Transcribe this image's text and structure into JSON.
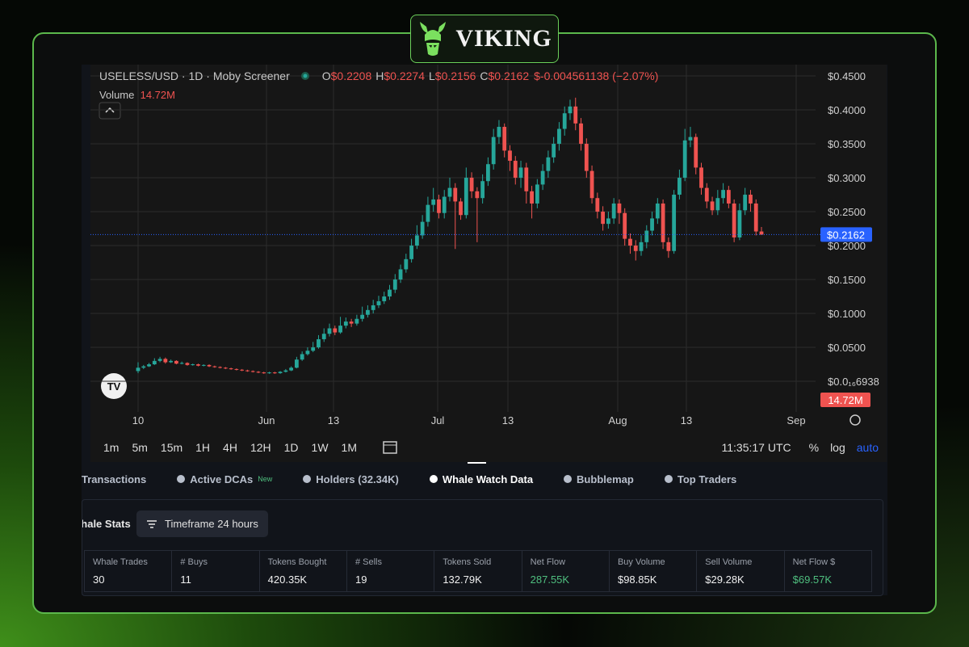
{
  "brand": "VIKING",
  "chart_data": {
    "type": "candlestick",
    "title": "USELESS/USD · 1D · Moby Screener",
    "ohlc_letters": [
      "O",
      "H",
      "L",
      "C"
    ],
    "ohlc_values": [
      "$0.2208",
      "$0.2274",
      "$0.2156",
      "$0.2162"
    ],
    "change": "$-0.004561138 (−2.07%)",
    "volume_label": "Volume",
    "volume": "14.72M",
    "up_color": "#26a69a",
    "down_color": "#ef5350",
    "ylim": [
      -0.0452,
      0.4667
    ],
    "yticks": [
      {
        "value": 0.45,
        "label": "$0.4500"
      },
      {
        "value": 0.4,
        "label": "$0.4000"
      },
      {
        "value": 0.35,
        "label": "$0.3500"
      },
      {
        "value": 0.3,
        "label": "$0.3000"
      },
      {
        "value": 0.25,
        "label": "$0.2500"
      },
      {
        "value": 0.2,
        "label": "$0.2000"
      },
      {
        "value": 0.15,
        "label": "$0.1500"
      },
      {
        "value": 0.1,
        "label": "$0.1000"
      },
      {
        "value": 0.05,
        "label": "$0.0500"
      },
      {
        "value": 6.938e-18,
        "label": "$0.0₁₆6938"
      }
    ],
    "last_price": {
      "value": 0.2162,
      "label": "$0.2162"
    },
    "xtick_labels": [
      "10",
      "Jun",
      "13",
      "Jul",
      "13",
      "Aug",
      "13",
      "Sep"
    ],
    "candles": [
      [
        0.015,
        0.028,
        0.012,
        0.02
      ],
      [
        0.02,
        0.024,
        0.018,
        0.022
      ],
      [
        0.022,
        0.027,
        0.021,
        0.025
      ],
      [
        0.025,
        0.034,
        0.024,
        0.03
      ],
      [
        0.03,
        0.036,
        0.028,
        0.033
      ],
      [
        0.033,
        0.035,
        0.026,
        0.028
      ],
      [
        0.028,
        0.032,
        0.027,
        0.03
      ],
      [
        0.03,
        0.031,
        0.025,
        0.026
      ],
      [
        0.026,
        0.029,
        0.025,
        0.027
      ],
      [
        0.027,
        0.028,
        0.023,
        0.024
      ],
      [
        0.024,
        0.026,
        0.023,
        0.025
      ],
      [
        0.025,
        0.026,
        0.022,
        0.023
      ],
      [
        0.023,
        0.025,
        0.022,
        0.024
      ],
      [
        0.024,
        0.025,
        0.021,
        0.022
      ],
      [
        0.022,
        0.023,
        0.02,
        0.021
      ],
      [
        0.021,
        0.022,
        0.019,
        0.02
      ],
      [
        0.02,
        0.021,
        0.018,
        0.019
      ],
      [
        0.019,
        0.02,
        0.017,
        0.018
      ],
      [
        0.018,
        0.019,
        0.016,
        0.017
      ],
      [
        0.017,
        0.018,
        0.015,
        0.016
      ],
      [
        0.016,
        0.017,
        0.014,
        0.015
      ],
      [
        0.015,
        0.016,
        0.013,
        0.014
      ],
      [
        0.014,
        0.015,
        0.012,
        0.013
      ],
      [
        0.013,
        0.014,
        0.011,
        0.012
      ],
      [
        0.012,
        0.014,
        0.011,
        0.013
      ],
      [
        0.013,
        0.014,
        0.011,
        0.012
      ],
      [
        0.012,
        0.015,
        0.011,
        0.014
      ],
      [
        0.014,
        0.018,
        0.013,
        0.016
      ],
      [
        0.016,
        0.022,
        0.015,
        0.02
      ],
      [
        0.02,
        0.036,
        0.019,
        0.032
      ],
      [
        0.032,
        0.044,
        0.03,
        0.04
      ],
      [
        0.04,
        0.05,
        0.038,
        0.045
      ],
      [
        0.045,
        0.058,
        0.043,
        0.05
      ],
      [
        0.05,
        0.068,
        0.048,
        0.062
      ],
      [
        0.062,
        0.078,
        0.058,
        0.07
      ],
      [
        0.07,
        0.085,
        0.066,
        0.078
      ],
      [
        0.078,
        0.082,
        0.068,
        0.072
      ],
      [
        0.072,
        0.095,
        0.07,
        0.082
      ],
      [
        0.082,
        0.094,
        0.078,
        0.088
      ],
      [
        0.088,
        0.092,
        0.08,
        0.085
      ],
      [
        0.085,
        0.098,
        0.082,
        0.092
      ],
      [
        0.092,
        0.11,
        0.088,
        0.098
      ],
      [
        0.098,
        0.112,
        0.094,
        0.105
      ],
      [
        0.105,
        0.12,
        0.1,
        0.112
      ],
      [
        0.112,
        0.126,
        0.108,
        0.118
      ],
      [
        0.118,
        0.132,
        0.114,
        0.125
      ],
      [
        0.125,
        0.142,
        0.12,
        0.135
      ],
      [
        0.135,
        0.158,
        0.13,
        0.15
      ],
      [
        0.15,
        0.172,
        0.145,
        0.165
      ],
      [
        0.165,
        0.188,
        0.16,
        0.18
      ],
      [
        0.18,
        0.21,
        0.175,
        0.2
      ],
      [
        0.2,
        0.23,
        0.195,
        0.215
      ],
      [
        0.215,
        0.245,
        0.21,
        0.235
      ],
      [
        0.235,
        0.272,
        0.228,
        0.26
      ],
      [
        0.26,
        0.285,
        0.25,
        0.268
      ],
      [
        0.268,
        0.275,
        0.24,
        0.248
      ],
      [
        0.248,
        0.282,
        0.24,
        0.272
      ],
      [
        0.272,
        0.3,
        0.265,
        0.285
      ],
      [
        0.285,
        0.292,
        0.195,
        0.265
      ],
      [
        0.265,
        0.27,
        0.238,
        0.245
      ],
      [
        0.245,
        0.315,
        0.24,
        0.3
      ],
      [
        0.3,
        0.308,
        0.27,
        0.28
      ],
      [
        0.28,
        0.286,
        0.205,
        0.27
      ],
      [
        0.27,
        0.305,
        0.262,
        0.295
      ],
      [
        0.295,
        0.33,
        0.288,
        0.32
      ],
      [
        0.32,
        0.372,
        0.312,
        0.36
      ],
      [
        0.36,
        0.385,
        0.35,
        0.375
      ],
      [
        0.375,
        0.38,
        0.33,
        0.34
      ],
      [
        0.34,
        0.348,
        0.31,
        0.325
      ],
      [
        0.325,
        0.332,
        0.29,
        0.3
      ],
      [
        0.3,
        0.325,
        0.285,
        0.315
      ],
      [
        0.315,
        0.322,
        0.262,
        0.28
      ],
      [
        0.28,
        0.288,
        0.24,
        0.262
      ],
      [
        0.262,
        0.298,
        0.255,
        0.29
      ],
      [
        0.29,
        0.32,
        0.282,
        0.31
      ],
      [
        0.31,
        0.34,
        0.3,
        0.33
      ],
      [
        0.33,
        0.36,
        0.322,
        0.35
      ],
      [
        0.35,
        0.382,
        0.34,
        0.372
      ],
      [
        0.372,
        0.405,
        0.362,
        0.395
      ],
      [
        0.395,
        0.415,
        0.385,
        0.405
      ],
      [
        0.405,
        0.418,
        0.37,
        0.38
      ],
      [
        0.38,
        0.388,
        0.34,
        0.35
      ],
      [
        0.35,
        0.358,
        0.3,
        0.31
      ],
      [
        0.31,
        0.318,
        0.262,
        0.27
      ],
      [
        0.27,
        0.278,
        0.24,
        0.25
      ],
      [
        0.25,
        0.258,
        0.222,
        0.232
      ],
      [
        0.232,
        0.25,
        0.225,
        0.24
      ],
      [
        0.24,
        0.27,
        0.232,
        0.262
      ],
      [
        0.262,
        0.268,
        0.232,
        0.248
      ],
      [
        0.248,
        0.255,
        0.2,
        0.21
      ],
      [
        0.21,
        0.218,
        0.188,
        0.2
      ],
      [
        0.2,
        0.208,
        0.178,
        0.192
      ],
      [
        0.192,
        0.215,
        0.185,
        0.205
      ],
      [
        0.205,
        0.23,
        0.196,
        0.222
      ],
      [
        0.222,
        0.25,
        0.215,
        0.24
      ],
      [
        0.24,
        0.27,
        0.232,
        0.262
      ],
      [
        0.262,
        0.268,
        0.195,
        0.205
      ],
      [
        0.205,
        0.212,
        0.182,
        0.192
      ],
      [
        0.192,
        0.282,
        0.188,
        0.275
      ],
      [
        0.275,
        0.312,
        0.268,
        0.3
      ],
      [
        0.3,
        0.372,
        0.295,
        0.355
      ],
      [
        0.355,
        0.375,
        0.345,
        0.36
      ],
      [
        0.36,
        0.365,
        0.305,
        0.315
      ],
      [
        0.315,
        0.322,
        0.275,
        0.285
      ],
      [
        0.285,
        0.292,
        0.255,
        0.265
      ],
      [
        0.265,
        0.272,
        0.245,
        0.252
      ],
      [
        0.252,
        0.282,
        0.245,
        0.27
      ],
      [
        0.27,
        0.292,
        0.262,
        0.282
      ],
      [
        0.282,
        0.288,
        0.255,
        0.262
      ],
      [
        0.262,
        0.268,
        0.205,
        0.212
      ],
      [
        0.212,
        0.262,
        0.208,
        0.252
      ],
      [
        0.252,
        0.285,
        0.245,
        0.275
      ],
      [
        0.275,
        0.282,
        0.25,
        0.262
      ],
      [
        0.262,
        0.268,
        0.215,
        0.2208
      ],
      [
        0.2208,
        0.2274,
        0.2156,
        0.2162
      ]
    ]
  },
  "toolbar": {
    "timeframes": [
      "1m",
      "5m",
      "15m",
      "1H",
      "4H",
      "12H",
      "1D",
      "1W",
      "1M"
    ],
    "time": "11:35:17 UTC",
    "options": [
      "%",
      "log",
      "auto"
    ]
  },
  "tabs": [
    {
      "label": "Transactions"
    },
    {
      "label": "Active DCAs",
      "badge": "New"
    },
    {
      "label": "Holders (32.34K)"
    },
    {
      "label": "Whale Watch Data"
    },
    {
      "label": "Bubblemap"
    },
    {
      "label": "Top Traders"
    }
  ],
  "stats": {
    "title": "Whale Stats",
    "timeframe": "Timeframe 24 hours",
    "columns": [
      {
        "label": "Whale Trades",
        "value": "30"
      },
      {
        "label": "# Buys",
        "value": "11"
      },
      {
        "label": "Tokens Bought",
        "value": "420.35K"
      },
      {
        "label": "# Sells",
        "value": "19"
      },
      {
        "label": "Tokens Sold",
        "value": "132.79K"
      },
      {
        "label": "Net Flow",
        "value": "287.55K",
        "color": "#4fbf7f"
      },
      {
        "label": "Buy Volume",
        "value": "$98.85K"
      },
      {
        "label": "Sell Volume",
        "value": "$29.28K"
      },
      {
        "label": "Net Flow $",
        "value": "$69.57K",
        "color": "#4fbf7f"
      }
    ]
  }
}
